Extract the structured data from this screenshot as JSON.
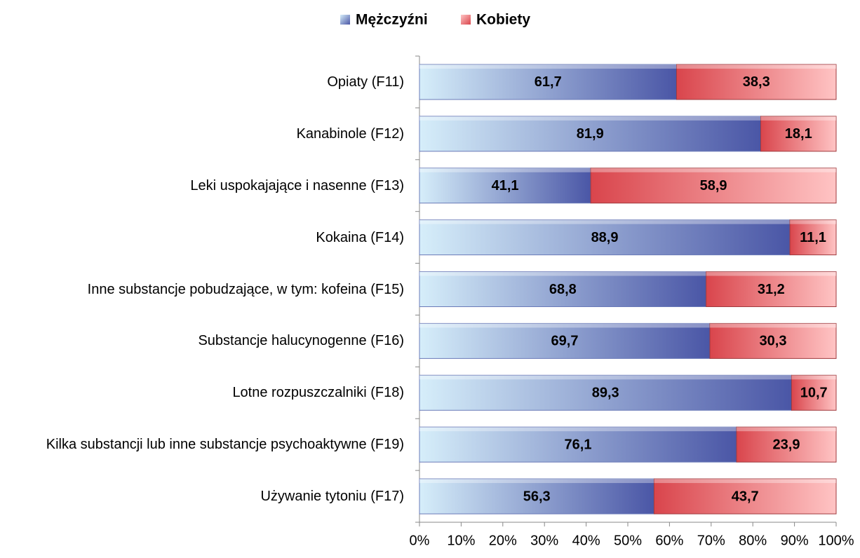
{
  "chart_data": {
    "type": "stacked_barh",
    "categories": [
      "Opiaty (F11)",
      "Kanabinole (F12)",
      "Leki uspokajające i nasenne (F13)",
      "Kokaina (F14)",
      "Inne substancje pobudzające, w tym: kofeina (F15)",
      "Substancje halucynogenne (F16)",
      "Lotne rozpuszczalniki (F18)",
      "Kilka substancji lub inne substancje psychoaktywne (F19)",
      "Używanie tytoniu (F17)"
    ],
    "series": [
      {
        "name": "Mężczyźni",
        "color": "#4a56a6",
        "values": [
          61.7,
          81.9,
          41.1,
          88.9,
          68.8,
          69.7,
          89.3,
          76.1,
          56.3
        ],
        "value_labels": [
          "61,7",
          "81,9",
          "41,1",
          "88,9",
          "68,8",
          "69,7",
          "89,3",
          "76,1",
          "56,3"
        ]
      },
      {
        "name": "Kobiety",
        "color": "#d9454c",
        "values": [
          38.3,
          18.1,
          58.9,
          11.1,
          31.2,
          30.3,
          10.7,
          23.9,
          43.7
        ],
        "value_labels": [
          "38,3",
          "18,1",
          "58,9",
          "11,1",
          "31,2",
          "30,3",
          "10,7",
          "23,9",
          "43,7"
        ]
      }
    ],
    "xlim": [
      0,
      100
    ],
    "xticks": [
      {
        "value": 0,
        "label": "0%"
      },
      {
        "value": 10,
        "label": "10%"
      },
      {
        "value": 20,
        "label": "20%"
      },
      {
        "value": 30,
        "label": "30%"
      },
      {
        "value": 40,
        "label": "40%"
      },
      {
        "value": 50,
        "label": "50%"
      },
      {
        "value": 60,
        "label": "60%"
      },
      {
        "value": 70,
        "label": "70%"
      },
      {
        "value": 80,
        "label": "80%"
      },
      {
        "value": 90,
        "label": "90%"
      },
      {
        "value": 100,
        "label": "100%"
      }
    ],
    "legend": "top"
  }
}
